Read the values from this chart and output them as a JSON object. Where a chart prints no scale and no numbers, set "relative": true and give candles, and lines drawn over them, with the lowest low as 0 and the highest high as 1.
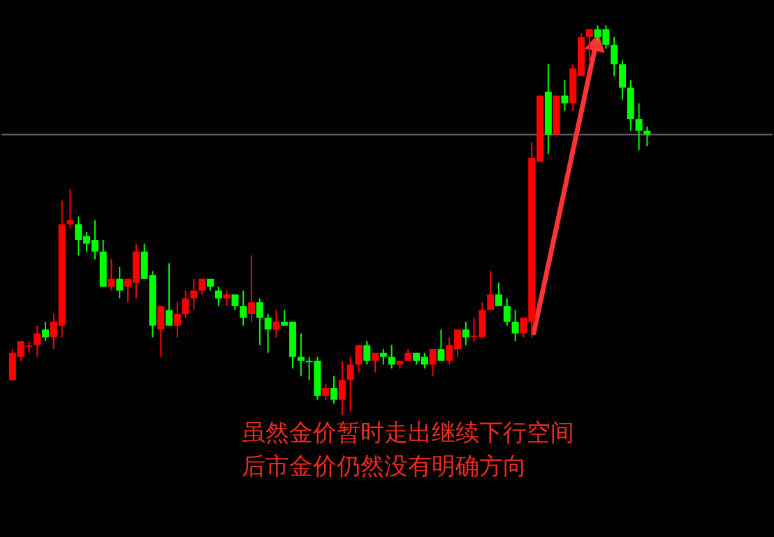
{
  "chart_data": {
    "type": "candlestick",
    "relative": true,
    "grid": false,
    "tick_labels": false,
    "categories": [
      null,
      null,
      null,
      null,
      null,
      null,
      null,
      null,
      null,
      null,
      null,
      null,
      null,
      null,
      null,
      null,
      null,
      null,
      null,
      null,
      null,
      null,
      null,
      null,
      null,
      null,
      null,
      null,
      null,
      null,
      null,
      null,
      null,
      null,
      null,
      null,
      null,
      null,
      null,
      null,
      null,
      null,
      null,
      null,
      null,
      null,
      null,
      null,
      null,
      null,
      null,
      null,
      null,
      null,
      null,
      null,
      null,
      null,
      null,
      null,
      null,
      null,
      null,
      null,
      null,
      null,
      null,
      null,
      null,
      null,
      null,
      null,
      null,
      null,
      null,
      null,
      null,
      null
    ],
    "ohlc": [
      [
        0.09,
        0.17,
        0.09,
        0.16
      ],
      [
        0.15,
        0.19,
        0.14,
        0.19
      ],
      [
        0.176,
        0.19,
        0.16,
        0.179
      ],
      [
        0.18,
        0.23,
        0.15,
        0.21
      ],
      [
        0.22,
        0.24,
        0.19,
        0.2
      ],
      [
        0.2,
        0.26,
        0.17,
        0.24
      ],
      [
        0.23,
        0.55,
        0.2,
        0.49
      ],
      [
        0.49,
        0.58,
        0.48,
        0.5
      ],
      [
        0.49,
        0.51,
        0.41,
        0.45
      ],
      [
        0.46,
        0.47,
        0.42,
        0.44
      ],
      [
        0.45,
        0.5,
        0.4,
        0.42
      ],
      [
        0.42,
        0.45,
        0.33,
        0.33
      ],
      [
        0.33,
        0.4,
        0.32,
        0.35
      ],
      [
        0.35,
        0.38,
        0.3,
        0.32
      ],
      [
        0.33,
        0.35,
        0.29,
        0.35
      ],
      [
        0.34,
        0.44,
        0.3,
        0.42
      ],
      [
        0.42,
        0.44,
        0.35,
        0.35
      ],
      [
        0.36,
        0.37,
        0.2,
        0.23
      ],
      [
        0.22,
        0.28,
        0.15,
        0.28
      ],
      [
        0.27,
        0.39,
        0.23,
        0.23
      ],
      [
        0.23,
        0.29,
        0.2,
        0.26
      ],
      [
        0.26,
        0.32,
        0.25,
        0.3
      ],
      [
        0.3,
        0.35,
        0.27,
        0.32
      ],
      [
        0.32,
        0.35,
        0.31,
        0.35
      ],
      [
        0.35,
        0.35,
        0.32,
        0.33
      ],
      [
        0.32,
        0.33,
        0.28,
        0.3
      ],
      [
        0.3,
        0.32,
        0.28,
        0.31
      ],
      [
        0.31,
        0.31,
        0.27,
        0.28
      ],
      [
        0.28,
        0.32,
        0.23,
        0.25
      ],
      [
        0.26,
        0.41,
        0.24,
        0.29
      ],
      [
        0.29,
        0.3,
        0.18,
        0.25
      ],
      [
        0.25,
        0.26,
        0.16,
        0.22
      ],
      [
        0.22,
        0.27,
        0.2,
        0.24
      ],
      [
        0.24,
        0.27,
        0.23,
        0.23
      ],
      [
        0.24,
        0.24,
        0.12,
        0.15
      ],
      [
        0.15,
        0.21,
        0.1,
        0.14
      ],
      [
        0.14,
        0.15,
        0.09,
        0.136
      ],
      [
        0.14,
        0.15,
        0.04,
        0.05
      ],
      [
        0.05,
        0.08,
        0.04,
        0.07
      ],
      [
        0.07,
        0.1,
        0.03,
        0.04
      ],
      [
        0.04,
        0.14,
        0.0,
        0.09
      ],
      [
        0.09,
        0.15,
        0.01,
        0.13
      ],
      [
        0.13,
        0.18,
        0.11,
        0.18
      ],
      [
        0.18,
        0.19,
        0.13,
        0.14
      ],
      [
        0.14,
        0.16,
        0.11,
        0.16
      ],
      [
        0.16,
        0.17,
        0.13,
        0.15
      ],
      [
        0.15,
        0.18,
        0.12,
        0.13
      ],
      [
        0.13,
        0.14,
        0.12,
        0.14
      ],
      [
        0.14,
        0.17,
        0.14,
        0.16
      ],
      [
        0.16,
        0.16,
        0.13,
        0.14
      ],
      [
        0.15,
        0.16,
        0.12,
        0.13
      ],
      [
        0.13,
        0.17,
        0.1,
        0.17
      ],
      [
        0.17,
        0.22,
        0.14,
        0.14
      ],
      [
        0.14,
        0.2,
        0.13,
        0.18
      ],
      [
        0.17,
        0.22,
        0.15,
        0.22
      ],
      [
        0.22,
        0.24,
        0.18,
        0.2
      ],
      [
        0.204,
        0.25,
        0.19,
        0.201
      ],
      [
        0.2,
        0.29,
        0.2,
        0.27
      ],
      [
        0.27,
        0.37,
        0.27,
        0.31
      ],
      [
        0.31,
        0.34,
        0.28,
        0.28
      ],
      [
        0.28,
        0.3,
        0.23,
        0.24
      ],
      [
        0.24,
        0.27,
        0.19,
        0.21
      ],
      [
        0.21,
        0.25,
        0.2,
        0.25
      ],
      [
        0.24,
        0.7,
        0.2,
        0.66
      ],
      [
        0.65,
        0.82,
        0.65,
        0.82
      ],
      [
        0.83,
        0.9,
        0.67,
        0.72
      ],
      [
        0.72,
        0.82,
        0.72,
        0.82
      ],
      [
        0.82,
        0.86,
        0.78,
        0.8
      ],
      [
        0.8,
        0.9,
        0.78,
        0.89
      ],
      [
        0.87,
        0.98,
        0.87,
        0.97
      ],
      [
        0.97,
        0.99,
        0.91,
        0.99
      ],
      [
        0.99,
        1.0,
        0.96,
        0.97
      ],
      [
        0.99,
        1.0,
        0.94,
        0.95
      ],
      [
        0.95,
        0.97,
        0.87,
        0.9
      ],
      [
        0.9,
        0.91,
        0.81,
        0.84
      ],
      [
        0.84,
        0.86,
        0.73,
        0.76
      ],
      [
        0.76,
        0.8,
        0.68,
        0.73
      ],
      [
        0.73,
        0.74,
        0.69,
        0.72
      ]
    ],
    "colors": [
      "#ff0000",
      "#ff0000",
      "#ff0000",
      "#ff0000",
      "#00ff00",
      "#ff0000",
      "#ff0000",
      "#ff0000",
      "#00ff00",
      "#00ff00",
      "#00ff00",
      "#00ff00",
      "#ff0000",
      "#00ff00",
      "#ff0000",
      "#ff0000",
      "#00ff00",
      "#00ff00",
      "#ff0000",
      "#00ff00",
      "#ff0000",
      "#ff0000",
      "#ff0000",
      "#ff0000",
      "#00ff00",
      "#00ff00",
      "#ff0000",
      "#00ff00",
      "#00ff00",
      "#ff0000",
      "#00ff00",
      "#00ff00",
      "#ff0000",
      "#00ff00",
      "#00ff00",
      "#00ff00",
      "#00ff00",
      "#00ff00",
      "#ff0000",
      "#00ff00",
      "#ff0000",
      "#ff0000",
      "#ff0000",
      "#00ff00",
      "#ff0000",
      "#00ff00",
      "#00ff00",
      "#ff0000",
      "#ff0000",
      "#00ff00",
      "#00ff00",
      "#ff0000",
      "#00ff00",
      "#ff0000",
      "#ff0000",
      "#00ff00",
      "#ff0000",
      "#ff0000",
      "#ff0000",
      "#00ff00",
      "#00ff00",
      "#00ff00",
      "#ff0000",
      "#ff0000",
      "#ff0000",
      "#00ff00",
      "#ff0000",
      "#00ff00",
      "#ff0000",
      "#ff0000",
      "#ff0000",
      "#00ff00",
      "#00ff00",
      "#00ff00",
      "#00ff00",
      "#00ff00",
      "#00ff00",
      "#00ff00"
    ],
    "ref_lines": [
      {
        "axis": "y",
        "value": 0.72,
        "color": "#5f6670"
      }
    ],
    "annotations": [
      "虽然金价暂时走出继续下行空间",
      "后市金价仍然没有明确方向"
    ]
  }
}
